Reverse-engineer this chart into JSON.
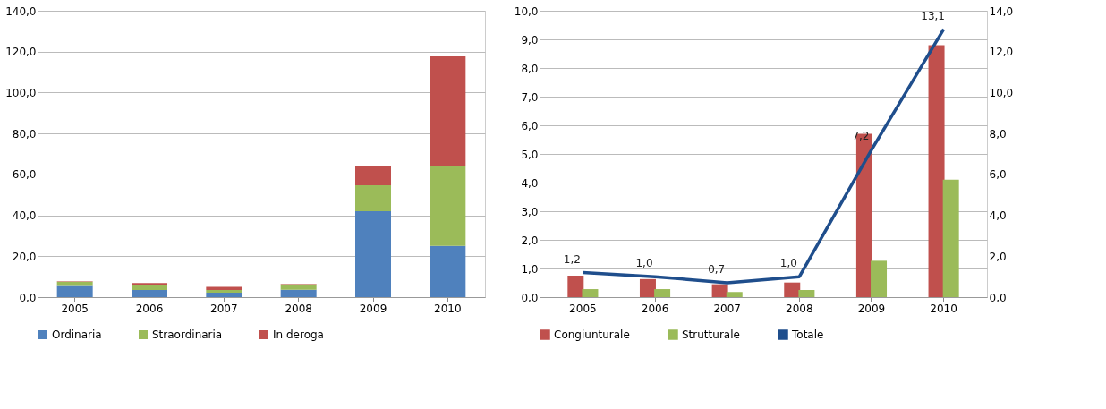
{
  "chart_data": [
    {
      "type": "bar",
      "stacked": true,
      "categories": [
        "2005",
        "2006",
        "2007",
        "2008",
        "2009",
        "2010"
      ],
      "series": [
        {
          "name": "Ordinaria",
          "color": "#4f81bd",
          "values": [
            5.5,
            3.5,
            2.2,
            3.6,
            42.0,
            25.0
          ]
        },
        {
          "name": "Straordinaria",
          "color": "#9bbb59",
          "values": [
            2.0,
            2.6,
            1.3,
            2.6,
            12.7,
            39.3
          ]
        },
        {
          "name": "In deroga",
          "color": "#c0504d",
          "values": [
            0.3,
            0.8,
            1.5,
            0.3,
            9.2,
            53.4
          ]
        }
      ],
      "ylim": [
        0,
        140
      ],
      "yticks": [
        {
          "value": 0,
          "label": "0,0"
        },
        {
          "value": 20,
          "label": "20,0"
        },
        {
          "value": 40,
          "label": "40,0"
        },
        {
          "value": 60,
          "label": "60,0"
        },
        {
          "value": 80,
          "label": "80,0"
        },
        {
          "value": 100,
          "label": "100,0"
        },
        {
          "value": 120,
          "label": "120,0"
        },
        {
          "value": 140,
          "label": "140,0"
        }
      ],
      "grid": "y",
      "legend": "bottom"
    },
    {
      "type": "bar",
      "categories": [
        "2005",
        "2006",
        "2007",
        "2008",
        "2009",
        "2010"
      ],
      "series": [
        {
          "name": "Congiunturale",
          "color": "#c0504d",
          "values": [
            0.75,
            0.63,
            0.45,
            0.51,
            5.7,
            8.8
          ]
        },
        {
          "name": "Strutturale",
          "color": "#9bbb59",
          "values": [
            0.28,
            0.28,
            0.18,
            0.25,
            1.27,
            4.1
          ]
        },
        {
          "name": "Totale",
          "type": "line",
          "axis": "y2",
          "color": "#1f4e8c",
          "values": [
            1.2,
            1.0,
            0.7,
            1.0,
            7.2,
            13.1
          ],
          "value_labels": [
            "1,2",
            "1,0",
            "0,7",
            "1,0",
            "7,2",
            "13,1"
          ]
        }
      ],
      "ylim": [
        0,
        10
      ],
      "yticks": [
        {
          "value": 0,
          "label": "0,0"
        },
        {
          "value": 1,
          "label": "1,0"
        },
        {
          "value": 2,
          "label": "2,0"
        },
        {
          "value": 3,
          "label": "3,0"
        },
        {
          "value": 4,
          "label": "4,0"
        },
        {
          "value": 5,
          "label": "5,0"
        },
        {
          "value": 6,
          "label": "6,0"
        },
        {
          "value": 7,
          "label": "7,0"
        },
        {
          "value": 8,
          "label": "8,0"
        },
        {
          "value": 9,
          "label": "9,0"
        },
        {
          "value": 10,
          "label": "10,0"
        }
      ],
      "y2lim": [
        0,
        14
      ],
      "y2ticks": [
        {
          "value": 0,
          "label": "0,0"
        },
        {
          "value": 2,
          "label": "2,0"
        },
        {
          "value": 4,
          "label": "4,0"
        },
        {
          "value": 6,
          "label": "6,0"
        },
        {
          "value": 8,
          "label": "8,0"
        },
        {
          "value": 10,
          "label": "10,0"
        },
        {
          "value": 12,
          "label": "12,0"
        },
        {
          "value": 14,
          "label": "14,0"
        }
      ],
      "grid": "y",
      "legend": "bottom"
    }
  ]
}
